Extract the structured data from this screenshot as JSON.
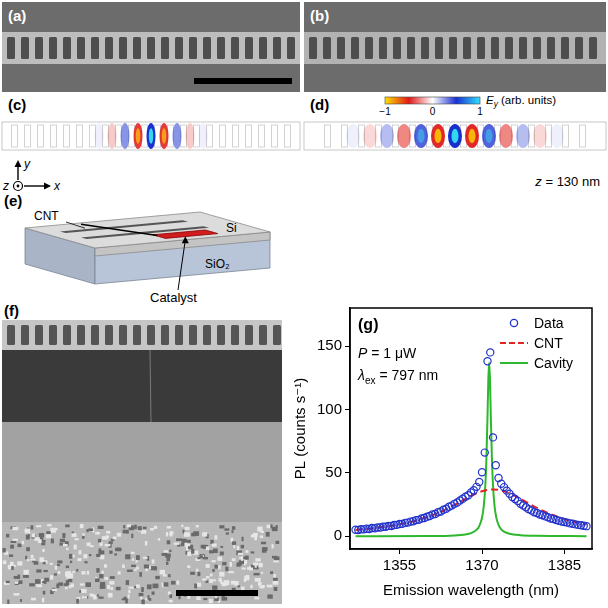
{
  "panels": {
    "a": {
      "label": "(a)"
    },
    "b": {
      "label": "(b)"
    },
    "c": {
      "label": "(c)",
      "axes": {
        "x": "x",
        "y": "y",
        "z": "z"
      }
    },
    "d": {
      "label": "(d)",
      "colorbar": {
        "title": [
          {
            "text": "E",
            "italic": true
          },
          {
            "text": "y",
            "sub": true,
            "italic": true
          },
          {
            "text": " (arb. units)"
          }
        ],
        "range": [
          -1,
          1
        ],
        "ticks": [
          {
            "value": -1,
            "label": "−1"
          },
          0,
          1
        ]
      },
      "annotation": [
        {
          "text": "z",
          "italic": true
        },
        {
          "text": " = 130 nm"
        }
      ]
    },
    "e": {
      "label": "(e)",
      "labels": {
        "cnt": "CNT",
        "si": "Si",
        "sio2": "SiO₂",
        "catalyst": "Catalyst"
      }
    },
    "f": {
      "label": "(f)"
    },
    "g": {
      "label": "(g)"
    }
  },
  "chart_data": {
    "type": "scatter",
    "x_label": "Emission wavelength (nm)",
    "y_label": "PL (counts s⁻¹)",
    "annotations": [
      [
        {
          "text": "P",
          "italic": true
        },
        {
          "text": " = 1 μW"
        }
      ],
      [
        {
          "text": "λ",
          "italic": true
        },
        {
          "text": "ex",
          "sub": true
        },
        {
          "text": " = 797 nm"
        }
      ]
    ],
    "xlim": [
      1346,
      1390
    ],
    "xticks": [
      1355,
      1370,
      1385
    ],
    "ylim": [
      -10,
      180
    ],
    "yticks": [
      0,
      50,
      100,
      150
    ],
    "grid": false,
    "legend": "top-right",
    "series": [
      {
        "name": "Data",
        "type": "scatter",
        "color": "#2233cc",
        "marker": "circle-open",
        "line_style": "none",
        "x": [
          1347,
          1347.5,
          1348,
          1348.5,
          1349,
          1349.5,
          1350,
          1350.5,
          1351,
          1351.5,
          1352,
          1352.5,
          1353,
          1353.5,
          1354,
          1354.5,
          1355,
          1355.5,
          1356,
          1356.5,
          1357,
          1357.5,
          1358,
          1358.5,
          1359,
          1359.5,
          1360,
          1360.5,
          1361,
          1361.5,
          1362,
          1362.5,
          1363,
          1363.5,
          1364,
          1364.5,
          1365,
          1365.5,
          1366,
          1366.5,
          1367,
          1367.5,
          1368,
          1368.5,
          1369,
          1369.5,
          1370,
          1370.5,
          1371,
          1371.5,
          1372,
          1372.5,
          1373,
          1373.5,
          1374,
          1374.5,
          1375,
          1375.5,
          1376,
          1376.5,
          1377,
          1377.5,
          1378,
          1378.5,
          1379,
          1379.5,
          1380,
          1380.5,
          1381,
          1381.5,
          1382,
          1382.5,
          1383,
          1383.5,
          1384,
          1384.5,
          1385,
          1385.5,
          1386,
          1386.5,
          1387,
          1387.5,
          1388,
          1388.5,
          1389
        ],
        "values": [
          5.2,
          5.0,
          5.6,
          5.5,
          6.0,
          5.8,
          6.5,
          6.3,
          7.0,
          6.9,
          7.6,
          7.5,
          8.2,
          8.1,
          8.9,
          9.0,
          9.7,
          9.8,
          10.6,
          10.8,
          11.6,
          11.9,
          12.8,
          13.0,
          14.1,
          14.4,
          15.5,
          16.0,
          17.2,
          17.6,
          19.0,
          19.6,
          21.0,
          21.8,
          23.3,
          24.2,
          25.6,
          26.7,
          28.3,
          29.6,
          31.2,
          32.4,
          34.6,
          36.3,
          39.0,
          42.8,
          50.5,
          66.0,
          138,
          145,
          78,
          56,
          46,
          41.5,
          38.8,
          36.0,
          33.5,
          31.0,
          29.4,
          27.8,
          25.6,
          24.3,
          22.9,
          21.4,
          20.3,
          19.0,
          18.4,
          17.2,
          16.6,
          15.7,
          15.0,
          14.1,
          13.6,
          12.9,
          12.3,
          11.7,
          11.2,
          10.8,
          10.2,
          9.9,
          9.4,
          9.0,
          8.7,
          8.3,
          8.0
        ]
      },
      {
        "name": "CNT",
        "type": "line",
        "color": "#e52222",
        "marker": "none",
        "line_style": "dashed",
        "x": [
          1347,
          1348,
          1349,
          1350,
          1351,
          1352,
          1353,
          1354,
          1355,
          1356,
          1357,
          1358,
          1359,
          1360,
          1361,
          1362,
          1363,
          1364,
          1365,
          1366,
          1367,
          1368,
          1369,
          1370,
          1371,
          1372,
          1373,
          1374,
          1375,
          1376,
          1377,
          1378,
          1379,
          1380,
          1381,
          1382,
          1383,
          1384,
          1385,
          1386,
          1387,
          1388,
          1389
        ],
        "values": [
          5.0,
          5.4,
          5.8,
          6.2,
          6.7,
          7.3,
          7.9,
          8.6,
          9.4,
          10.2,
          11.2,
          12.3,
          13.6,
          15.0,
          16.6,
          18.3,
          20.3,
          22.4,
          24.7,
          27.1,
          29.5,
          31.8,
          33.9,
          35.5,
          36.6,
          37.0,
          36.6,
          35.5,
          33.9,
          31.8,
          29.5,
          27.1,
          24.7,
          22.4,
          20.3,
          18.3,
          16.6,
          15.0,
          13.6,
          12.3,
          11.2,
          10.2,
          9.4
        ]
      },
      {
        "name": "Cavity",
        "type": "line",
        "color": "#2db82d",
        "marker": "none",
        "line_style": "solid",
        "x": [
          1347,
          1360,
          1365,
          1367,
          1368,
          1369,
          1369.5,
          1370,
          1370.3,
          1370.6,
          1370.8,
          1371,
          1371.15,
          1371.3,
          1371.45,
          1371.6,
          1371.8,
          1372,
          1372.3,
          1372.6,
          1373,
          1373.5,
          1374,
          1375,
          1377,
          1380,
          1389
        ],
        "values": [
          0.0,
          0.2,
          0.7,
          1.5,
          2.5,
          5.1,
          8.1,
          14.7,
          23.1,
          40.1,
          61.3,
          94.9,
          123.3,
          137,
          123.3,
          94.9,
          61.3,
          40.1,
          23.1,
          14.7,
          9.0,
          5.5,
          3.7,
          2.0,
          0.9,
          0.4,
          0.1
        ]
      }
    ]
  }
}
